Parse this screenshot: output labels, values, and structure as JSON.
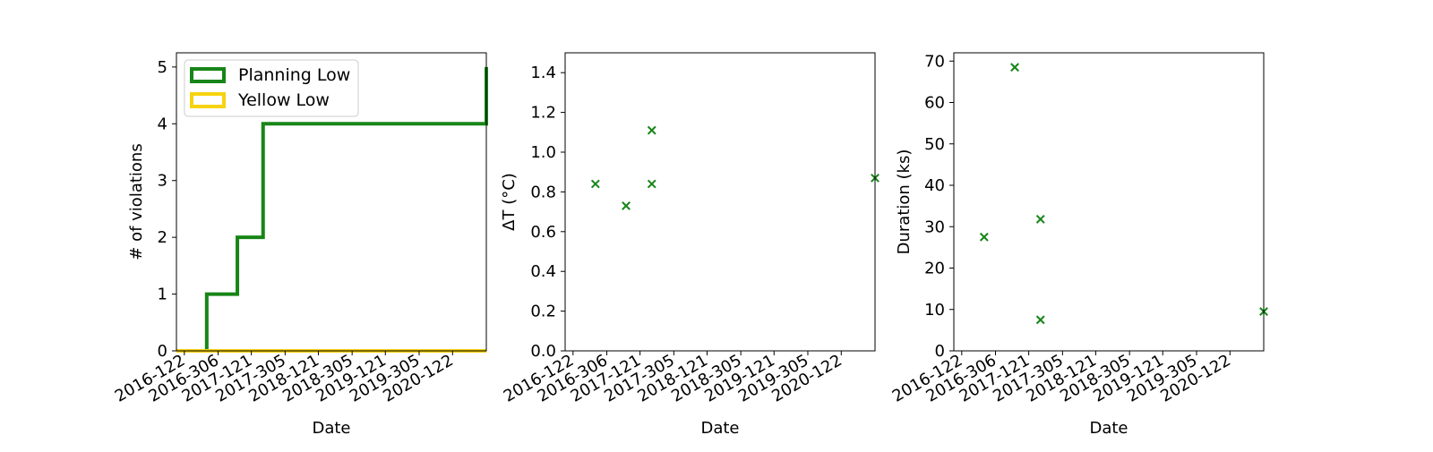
{
  "chart_data": [
    {
      "type": "line",
      "title": "",
      "xlabel": "Date",
      "ylabel": "# of violations",
      "ylim": [
        0,
        5.25
      ],
      "xlim": [
        "2016-079",
        "2020-306"
      ],
      "yticks": [
        0,
        1,
        2,
        3,
        4,
        5
      ],
      "xticks": [
        "2016-122",
        "2016-306",
        "2017-121",
        "2017-305",
        "2018-121",
        "2018-305",
        "2019-121",
        "2019-305",
        "2020-122"
      ],
      "grid": false,
      "legend_position": "top-left",
      "series": [
        {
          "name": "Planning Low",
          "color": "#178517",
          "step": true,
          "x": [
            "2016-079",
            "2016-244",
            "2017-045",
            "2017-185",
            "2020-305",
            "2020-306"
          ],
          "y": [
            0,
            1,
            2,
            4,
            4,
            5
          ]
        },
        {
          "name": "Yellow Low",
          "color": "#f7d30f",
          "step": true,
          "x": [
            "2016-079",
            "2020-306"
          ],
          "y": [
            0,
            0
          ]
        }
      ]
    },
    {
      "type": "scatter",
      "title": "",
      "xlabel": "Date",
      "ylabel": "ΔT ($^\\circ$C)",
      "ylabel_display": "ΔT (°C)",
      "ylim": [
        0,
        1.5
      ],
      "xlim": [
        "2016-079",
        "2020-306"
      ],
      "yticks": [
        0.0,
        0.2,
        0.4,
        0.6,
        0.8,
        1.0,
        1.2,
        1.4
      ],
      "xticks": [
        "2016-122",
        "2016-306",
        "2017-121",
        "2017-305",
        "2018-121",
        "2018-305",
        "2019-121",
        "2019-305",
        "2020-122"
      ],
      "grid": false,
      "marker": "x",
      "color": "#178517",
      "series": [
        {
          "x": [
            "2016-244",
            "2017-045",
            "2017-185",
            "2017-185",
            "2020-306"
          ],
          "y": [
            0.84,
            0.73,
            1.11,
            0.84,
            0.87
          ]
        }
      ]
    },
    {
      "type": "scatter",
      "title": "",
      "xlabel": "Date",
      "ylabel": "Duration (ks)",
      "ylim": [
        0,
        72
      ],
      "xlim": [
        "2016-079",
        "2020-306"
      ],
      "yticks": [
        0,
        10,
        20,
        30,
        40,
        50,
        60,
        70
      ],
      "xticks": [
        "2016-122",
        "2016-306",
        "2017-121",
        "2017-305",
        "2018-121",
        "2018-305",
        "2019-121",
        "2019-305",
        "2020-122"
      ],
      "grid": false,
      "marker": "x",
      "color": "#178517",
      "series": [
        {
          "x": [
            "2016-244",
            "2017-045",
            "2017-185",
            "2017-185",
            "2020-306"
          ],
          "y": [
            27.5,
            68.5,
            31.8,
            7.5,
            9.5
          ]
        }
      ]
    }
  ]
}
